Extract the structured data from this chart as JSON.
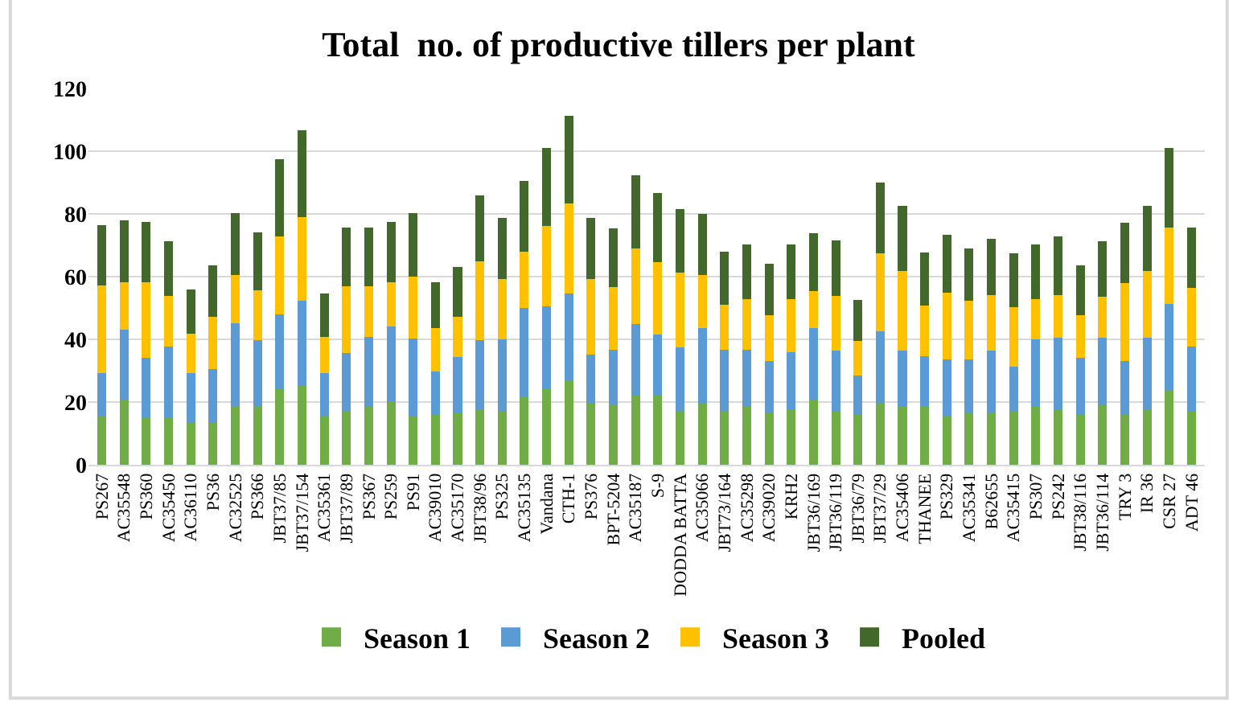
{
  "chart_data": {
    "type": "bar",
    "title": "Total  no. of productive tillers per plant",
    "stacked": true,
    "grid": "y",
    "legend": "bottom",
    "ylim": [
      0,
      120
    ],
    "yticks": [
      0,
      20,
      40,
      60,
      80,
      100,
      120
    ],
    "categories": [
      "PS267",
      "AC35548",
      "PS360",
      "AC35450",
      "AC36110",
      "PS36",
      "AC32525",
      "PS366",
      "JBT37/85",
      "JBT37/154",
      "AC35361",
      "JBT37/89",
      "PS367",
      "PS259",
      "PS91",
      "AC39010",
      "AC35170",
      "JBT38/96",
      "PS325",
      "AC35135",
      "Vandana",
      "CTH-1",
      "PS376",
      "BPT-5204",
      "AC35187",
      "S-9",
      "DODDA BATTA",
      "AC35066",
      "JBT73/164",
      "AC35298",
      "AC39020",
      "KRH2",
      "JBT36/169",
      "JBT36/119",
      "JBT36/79",
      "JBT37/29",
      "AC35406",
      "THANEE",
      "PS329",
      "AC35341",
      "B62655",
      "AC35415",
      "PS307",
      "PS242",
      "JBT38/116",
      "JBT36/114",
      "TRY 3",
      "IR 36",
      "CSR 27",
      "ADT 46"
    ],
    "series": [
      {
        "name": "Season 1",
        "color": "#70ad47",
        "values": [
          15.6,
          20.7,
          15,
          15,
          13.5,
          13.5,
          18.8,
          18.4,
          24,
          25.4,
          15.6,
          17.3,
          18.4,
          20.3,
          15.6,
          15.9,
          16.5,
          17.8,
          17.2,
          21.6,
          24.2,
          27,
          19.5,
          18.9,
          22.1,
          22.1,
          17.2,
          19.5,
          17.2,
          18.7,
          16.7,
          17.8,
          20.8,
          17.3,
          15.8,
          19.4,
          18.5,
          18.5,
          15.3,
          16.4,
          16.4,
          16.9,
          18.5,
          17.5,
          15.8,
          19,
          15.8,
          17.5,
          23.9,
          16.9
        ]
      },
      {
        "name": "Season 2",
        "color": "#5b9bd5",
        "values": [
          13.7,
          22.3,
          19.2,
          22.6,
          15.8,
          16.9,
          26.3,
          21.4,
          23.9,
          26.8,
          13.7,
          18.4,
          22.4,
          23.8,
          24.6,
          13.9,
          17.8,
          21.9,
          22.9,
          28.4,
          26.4,
          27.5,
          15.7,
          17.8,
          22.9,
          19.5,
          20.3,
          24,
          19.5,
          18,
          16.5,
          18,
          22.7,
          19.2,
          12.6,
          23.2,
          18,
          16,
          18.2,
          17.1,
          20.1,
          14.4,
          21.4,
          23,
          18.3,
          21.5,
          17.2,
          23,
          27.5,
          20.8
        ]
      },
      {
        "name": "Season 3",
        "color": "#ffc000",
        "values": [
          27.8,
          15.2,
          24,
          16.3,
          12.4,
          16.9,
          15.4,
          15.8,
          25,
          26.7,
          11.6,
          21.2,
          16.1,
          14.1,
          19.9,
          13.7,
          12.9,
          25.2,
          19.1,
          18,
          25.5,
          28.9,
          24,
          19.9,
          24,
          23.1,
          23.8,
          16.9,
          14.3,
          16.2,
          14.6,
          16.9,
          12,
          17.4,
          11,
          24.8,
          25.3,
          16.3,
          21.3,
          18.7,
          17.7,
          19,
          12.8,
          13.7,
          13.5,
          13.2,
          25,
          21.3,
          24.3,
          18.8
        ]
      },
      {
        "name": "Pooled",
        "color": "#43682b",
        "values": [
          19.3,
          19.7,
          19.2,
          17.5,
          14.3,
          16.4,
          19.7,
          18.4,
          24.5,
          27.7,
          13.6,
          18.8,
          18.8,
          19.2,
          20.1,
          14.6,
          15.8,
          21.1,
          19.5,
          22.6,
          24.9,
          27.8,
          19.5,
          18.9,
          23.3,
          21.9,
          20.2,
          19.6,
          16.9,
          17.4,
          16.3,
          17.6,
          18.4,
          17.7,
          13.1,
          22.6,
          20.7,
          17,
          18.6,
          16.7,
          17.9,
          17.1,
          17.5,
          18.7,
          15.9,
          17.5,
          19.2,
          20.7,
          25.3,
          19.2
        ]
      }
    ]
  }
}
